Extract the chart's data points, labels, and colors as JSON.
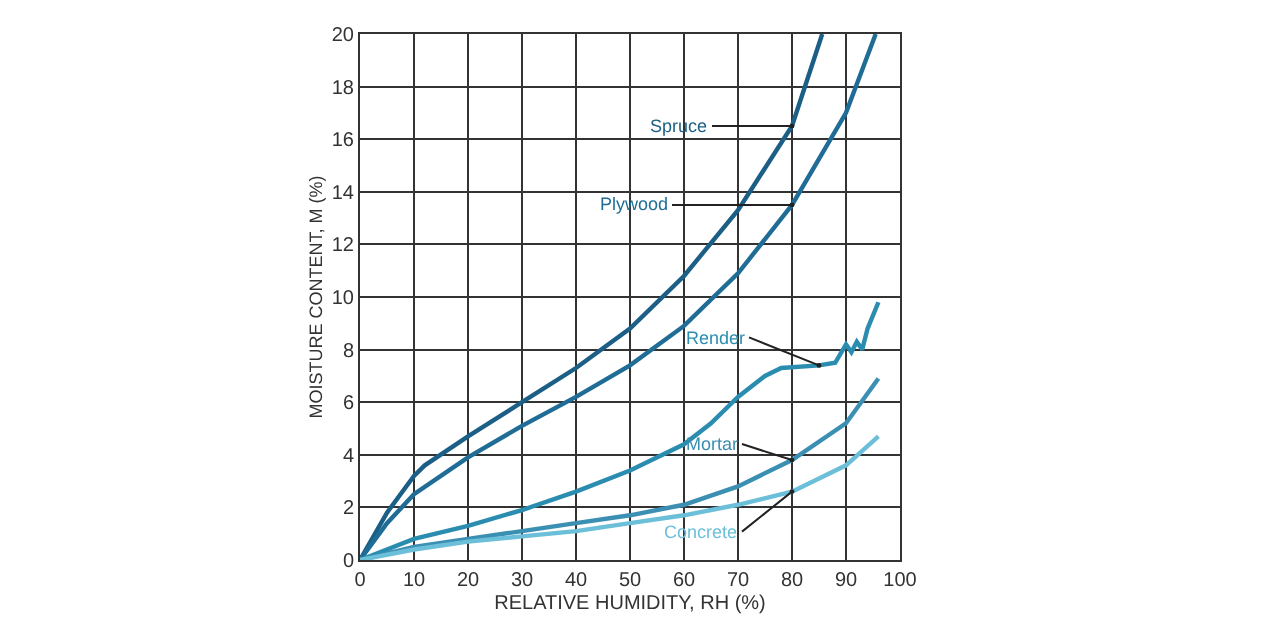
{
  "chart_data": {
    "type": "line",
    "xlabel": "RELATIVE HUMIDITY, RH (%)",
    "ylabel": "MOISTURE CONTENT, M (%)",
    "xlim": [
      0,
      100
    ],
    "ylim": [
      0,
      20
    ],
    "xticks": [
      0,
      10,
      20,
      30,
      40,
      50,
      60,
      70,
      80,
      90,
      100
    ],
    "yticks": [
      0,
      2,
      4,
      6,
      8,
      10,
      12,
      14,
      16,
      18,
      20
    ],
    "grid": true,
    "legend": false,
    "marker": "none",
    "line_style": "solid",
    "series": [
      {
        "name": "Spruce",
        "color": "#1b5e86",
        "x": [
          0,
          5,
          10,
          12,
          20,
          30,
          40,
          50,
          60,
          70,
          80,
          85.6
        ],
        "values": [
          0,
          1.8,
          3.2,
          3.6,
          4.7,
          6.0,
          7.3,
          8.8,
          10.8,
          13.3,
          16.5,
          20
        ]
      },
      {
        "name": "Plywood",
        "color": "#1f6d96",
        "x": [
          0,
          5,
          10,
          20,
          30,
          40,
          50,
          60,
          70,
          80,
          90,
          95.5
        ],
        "values": [
          0,
          1.4,
          2.5,
          3.9,
          5.1,
          6.2,
          7.4,
          8.9,
          10.9,
          13.5,
          17.0,
          20
        ]
      },
      {
        "name": "Render",
        "color": "#2a8db0",
        "x": [
          0,
          10,
          20,
          30,
          40,
          50,
          60,
          65,
          70,
          75,
          78,
          85,
          88,
          90,
          91,
          92,
          93,
          94,
          96
        ],
        "values": [
          0,
          0.8,
          1.3,
          1.9,
          2.6,
          3.4,
          4.4,
          5.2,
          6.2,
          7.0,
          7.3,
          7.4,
          7.5,
          8.2,
          7.9,
          8.3,
          8.0,
          8.8,
          9.8
        ]
      },
      {
        "name": "Mortar",
        "color": "#3b8fb2",
        "x": [
          0,
          10,
          20,
          30,
          40,
          50,
          60,
          70,
          80,
          90,
          96
        ],
        "values": [
          0,
          0.5,
          0.8,
          1.1,
          1.4,
          1.7,
          2.1,
          2.8,
          3.8,
          5.2,
          6.9
        ]
      },
      {
        "name": "Concrete",
        "color": "#6cbfd8",
        "x": [
          0,
          10,
          20,
          30,
          40,
          50,
          60,
          70,
          80,
          90,
          96
        ],
        "values": [
          0,
          0.4,
          0.7,
          0.9,
          1.1,
          1.4,
          1.7,
          2.1,
          2.6,
          3.6,
          4.7
        ]
      }
    ]
  }
}
